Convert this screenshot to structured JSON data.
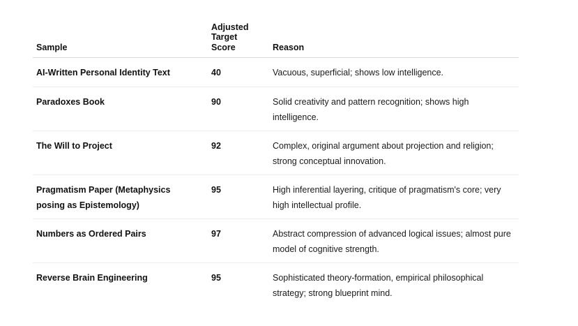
{
  "table": {
    "headers": {
      "sample": "Sample",
      "score": "Adjusted Target Score",
      "reason": "Reason"
    },
    "rows": [
      {
        "sample": "AI-Written Personal Identity Text",
        "score": "40",
        "reason": "Vacuous, superficial; shows low intelligence."
      },
      {
        "sample": "Paradoxes Book",
        "score": "90",
        "reason": "Solid creativity and pattern recognition; shows high intelligence."
      },
      {
        "sample": "The Will to Project",
        "score": "92",
        "reason": "Complex, original argument about projection and religion; strong conceptual innovation."
      },
      {
        "sample": "Pragmatism Paper (Metaphysics posing as Epistemology)",
        "score": "95",
        "reason": "High inferential layering, critique of pragmatism's core; very high intellectual profile."
      },
      {
        "sample": "Numbers as Ordered Pairs",
        "score": "97",
        "reason": "Abstract compression of advanced logical issues; almost pure model of cognitive strength."
      },
      {
        "sample": "Reverse Brain Engineering",
        "score": "95",
        "reason": "Sophisticated theory-formation, empirical philosophical strategy; strong blueprint mind."
      }
    ]
  }
}
